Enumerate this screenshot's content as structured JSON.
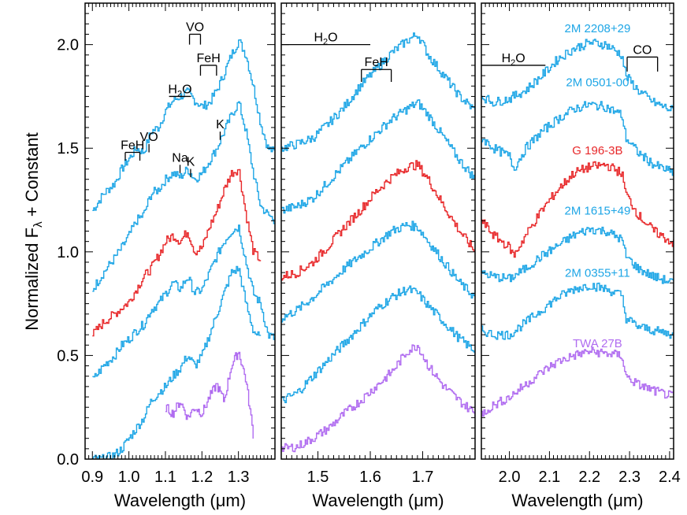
{
  "chart_data": {
    "type": "line",
    "ylabel_main": "Normalized F",
    "ylabel_sub": "λ",
    "ylabel_tail": " + Constant",
    "y_ticks": [
      "0.0",
      "0.5",
      "1.0",
      "1.5",
      "2.0"
    ],
    "ylim": [
      0.0,
      2.2
    ],
    "colors": {
      "field": "#1ea6e6",
      "target": "#e8282a",
      "young": "#b06cf0",
      "axis": "#000000"
    },
    "panels": [
      {
        "xlabel": "Wavelength (μm)",
        "xlim": [
          0.88,
          1.4
        ],
        "x_ticks": [
          "0.9",
          "1.0",
          "1.1",
          "1.2",
          "1.3"
        ],
        "spectra": [
          {
            "name": "2M 2208+29",
            "role": "field",
            "x": [
              0.9,
              0.93,
              0.96,
              0.98,
              1.0,
              1.02,
              1.04,
              1.06,
              1.08,
              1.1,
              1.12,
              1.14,
              1.16,
              1.18,
              1.2,
              1.22,
              1.24,
              1.26,
              1.28,
              1.3,
              1.32,
              1.34,
              1.36,
              1.38,
              1.4
            ],
            "y": [
              1.2,
              1.28,
              1.33,
              1.4,
              1.45,
              1.5,
              1.48,
              1.58,
              1.6,
              1.68,
              1.73,
              1.75,
              1.77,
              1.73,
              1.7,
              1.72,
              1.78,
              1.86,
              1.95,
              2.02,
              1.95,
              1.8,
              1.62,
              1.5,
              1.48
            ]
          },
          {
            "name": "2M 0501-00",
            "role": "field",
            "x": [
              0.9,
              0.93,
              0.96,
              0.98,
              1.0,
              1.02,
              1.04,
              1.06,
              1.08,
              1.1,
              1.12,
              1.14,
              1.16,
              1.18,
              1.2,
              1.22,
              1.24,
              1.26,
              1.28,
              1.3,
              1.32,
              1.34,
              1.36,
              1.38,
              1.4
            ],
            "y": [
              0.82,
              0.9,
              0.97,
              1.02,
              1.08,
              1.15,
              1.18,
              1.28,
              1.3,
              1.35,
              1.38,
              1.36,
              1.4,
              1.35,
              1.38,
              1.44,
              1.5,
              1.58,
              1.66,
              1.72,
              1.58,
              1.38,
              1.22,
              1.18,
              1.15
            ]
          },
          {
            "name": "G 196-3B",
            "role": "target",
            "x": [
              0.9,
              0.93,
              0.96,
              0.98,
              1.0,
              1.02,
              1.04,
              1.06,
              1.08,
              1.1,
              1.12,
              1.14,
              1.16,
              1.18,
              1.2,
              1.22,
              1.24,
              1.26,
              1.28,
              1.3,
              1.32,
              1.34,
              1.36
            ],
            "y": [
              0.6,
              0.66,
              0.7,
              0.73,
              0.76,
              0.82,
              0.88,
              0.92,
              0.98,
              1.05,
              1.08,
              1.05,
              1.1,
              1.0,
              1.02,
              1.12,
              1.2,
              1.3,
              1.38,
              1.4,
              1.18,
              1.0,
              0.96
            ]
          },
          {
            "name": "2M 1615+49",
            "role": "field",
            "x": [
              0.9,
              0.93,
              0.96,
              0.98,
              1.0,
              1.02,
              1.04,
              1.06,
              1.08,
              1.1,
              1.12,
              1.14,
              1.16,
              1.18,
              1.2,
              1.22,
              1.24,
              1.26,
              1.28,
              1.3,
              1.32,
              1.34,
              1.36,
              1.38,
              1.4
            ],
            "y": [
              0.38,
              0.45,
              0.5,
              0.55,
              0.58,
              0.62,
              0.65,
              0.72,
              0.75,
              0.8,
              0.85,
              0.82,
              0.88,
              0.8,
              0.82,
              0.9,
              0.98,
              1.05,
              1.1,
              1.12,
              0.95,
              0.8,
              0.75,
              0.6,
              0.58
            ]
          },
          {
            "name": "2M 0355+11",
            "role": "field",
            "x": [
              0.9,
              0.93,
              0.96,
              0.98,
              1.0,
              1.02,
              1.04,
              1.06,
              1.08,
              1.1,
              1.12,
              1.14,
              1.16,
              1.18,
              1.2,
              1.22,
              1.24,
              1.26,
              1.28,
              1.3,
              1.32,
              1.34,
              1.36
            ],
            "y": [
              0.0,
              0.0,
              0.02,
              0.05,
              0.1,
              0.15,
              0.2,
              0.28,
              0.32,
              0.35,
              0.4,
              0.44,
              0.5,
              0.45,
              0.5,
              0.6,
              0.7,
              0.8,
              0.9,
              0.92,
              0.75,
              0.62,
              0.58
            ]
          },
          {
            "name": "TWA 27B",
            "role": "young",
            "x": [
              1.1,
              1.12,
              1.14,
              1.16,
              1.18,
              1.2,
              1.22,
              1.24,
              1.26,
              1.28,
              1.3,
              1.32,
              1.34
            ],
            "y": [
              0.25,
              0.22,
              0.28,
              0.2,
              0.25,
              0.22,
              0.3,
              0.36,
              0.28,
              0.45,
              0.52,
              0.38,
              0.12
            ]
          }
        ],
        "annotations": [
          {
            "text": "VO",
            "x0": 1.166,
            "x1": 1.196,
            "y": 2.05,
            "tick": 0.05
          },
          {
            "text": "FeH",
            "x0": 1.196,
            "x1": 1.24,
            "y": 1.9,
            "tick": 0.05
          },
          {
            "text": "H",
            "sub": "2",
            "tail": "O",
            "x0": 1.11,
            "x1": 1.17,
            "y": 1.75,
            "tick": 0.0
          },
          {
            "text": "FeH",
            "x0": 0.99,
            "x1": 1.03,
            "y": 1.48,
            "tick": 0.04
          },
          {
            "text": "VO",
            "x0": 1.055,
            "x1": 1.055,
            "y": 1.52,
            "tick": 0.04
          },
          {
            "text": "Na",
            "x0": 1.14,
            "x1": 1.14,
            "y": 1.42,
            "tick": 0.04
          },
          {
            "text": "K",
            "x0": 1.169,
            "x1": 1.169,
            "y": 1.4,
            "tick": 0.04
          },
          {
            "text": "K",
            "x0": 1.25,
            "x1": 1.25,
            "y": 1.58,
            "tick": 0.04
          }
        ]
      },
      {
        "xlabel": "Wavelength (μm)",
        "xlim": [
          1.43,
          1.8
        ],
        "x_ticks": [
          "1.5",
          "1.6",
          "1.7"
        ],
        "spectra": [
          {
            "name": "2M 2208+29",
            "role": "field",
            "x": [
              1.43,
              1.46,
              1.49,
              1.52,
              1.55,
              1.58,
              1.61,
              1.64,
              1.67,
              1.69,
              1.71,
              1.74,
              1.77,
              1.8
            ],
            "y": [
              1.5,
              1.52,
              1.55,
              1.62,
              1.7,
              1.8,
              1.88,
              1.96,
              2.02,
              2.05,
              1.95,
              1.85,
              1.75,
              1.68
            ]
          },
          {
            "name": "2M 0501-00",
            "role": "field",
            "x": [
              1.43,
              1.46,
              1.49,
              1.52,
              1.55,
              1.58,
              1.61,
              1.64,
              1.67,
              1.69,
              1.71,
              1.74,
              1.77,
              1.8
            ],
            "y": [
              1.2,
              1.22,
              1.26,
              1.34,
              1.42,
              1.5,
              1.57,
              1.64,
              1.69,
              1.72,
              1.66,
              1.55,
              1.44,
              1.35
            ]
          },
          {
            "name": "G 196-3B",
            "role": "target",
            "x": [
              1.43,
              1.46,
              1.49,
              1.52,
              1.55,
              1.58,
              1.61,
              1.64,
              1.67,
              1.69,
              1.71,
              1.74,
              1.77,
              1.8
            ],
            "y": [
              0.88,
              0.9,
              0.95,
              1.03,
              1.12,
              1.2,
              1.29,
              1.36,
              1.41,
              1.42,
              1.35,
              1.22,
              1.1,
              1.0
            ]
          },
          {
            "name": "2M 1615+49",
            "role": "field",
            "x": [
              1.43,
              1.46,
              1.49,
              1.52,
              1.55,
              1.58,
              1.61,
              1.64,
              1.67,
              1.69,
              1.71,
              1.74,
              1.77,
              1.8
            ],
            "y": [
              0.68,
              0.72,
              0.78,
              0.85,
              0.92,
              0.98,
              1.04,
              1.1,
              1.13,
              1.12,
              1.05,
              0.95,
              0.85,
              0.78
            ]
          },
          {
            "name": "2M 0355+11",
            "role": "field",
            "x": [
              1.43,
              1.46,
              1.49,
              1.52,
              1.55,
              1.58,
              1.61,
              1.64,
              1.67,
              1.69,
              1.71,
              1.74,
              1.77,
              1.8
            ],
            "y": [
              0.28,
              0.32,
              0.4,
              0.48,
              0.56,
              0.64,
              0.72,
              0.78,
              0.82,
              0.8,
              0.74,
              0.66,
              0.58,
              0.52
            ]
          },
          {
            "name": "TWA 27B",
            "role": "young",
            "x": [
              1.43,
              1.46,
              1.49,
              1.52,
              1.55,
              1.58,
              1.61,
              1.64,
              1.67,
              1.69,
              1.71,
              1.74,
              1.77,
              1.8
            ],
            "y": [
              0.05,
              0.06,
              0.1,
              0.15,
              0.22,
              0.28,
              0.35,
              0.42,
              0.52,
              0.55,
              0.45,
              0.35,
              0.28,
              0.22
            ]
          }
        ],
        "annotations": [
          {
            "text": "H",
            "sub": "2",
            "tail": "O",
            "x0": 1.43,
            "x1": 1.6,
            "y": 2.0,
            "tick": 0.0
          },
          {
            "text": "FeH",
            "x0": 1.583,
            "x1": 1.64,
            "y": 1.88,
            "tick": 0.06
          }
        ]
      },
      {
        "xlabel": "Wavelength (μm)",
        "xlim": [
          1.93,
          2.41
        ],
        "x_ticks": [
          "2.0",
          "2.1",
          "2.2",
          "2.3",
          "2.4"
        ],
        "spectra": [
          {
            "name": "2M 2208+29",
            "role": "field",
            "x": [
              1.93,
              1.96,
              2.0,
              2.04,
              2.08,
              2.12,
              2.16,
              2.2,
              2.24,
              2.28,
              2.29,
              2.32,
              2.36,
              2.41
            ],
            "y": [
              1.75,
              1.72,
              1.74,
              1.78,
              1.85,
              1.93,
              1.98,
              2.01,
              2.0,
              1.95,
              1.85,
              1.78,
              1.72,
              1.68
            ]
          },
          {
            "name": "2M 0501-00",
            "role": "field",
            "x": [
              1.93,
              1.96,
              2.0,
              2.01,
              2.04,
              2.08,
              2.12,
              2.16,
              2.2,
              2.24,
              2.28,
              2.29,
              2.32,
              2.36,
              2.41
            ],
            "y": [
              1.55,
              1.5,
              1.46,
              1.4,
              1.5,
              1.58,
              1.64,
              1.69,
              1.71,
              1.7,
              1.66,
              1.55,
              1.48,
              1.42,
              1.38
            ]
          },
          {
            "name": "G 196-3B",
            "role": "target",
            "x": [
              1.93,
              1.96,
              2.0,
              2.01,
              2.04,
              2.08,
              2.12,
              2.16,
              2.2,
              2.24,
              2.28,
              2.29,
              2.32,
              2.36,
              2.41
            ],
            "y": [
              1.15,
              1.08,
              1.02,
              0.98,
              1.08,
              1.2,
              1.3,
              1.38,
              1.41,
              1.42,
              1.38,
              1.28,
              1.18,
              1.1,
              1.04
            ]
          },
          {
            "name": "2M 1615+49",
            "role": "field",
            "x": [
              1.93,
              1.96,
              2.0,
              2.04,
              2.08,
              2.12,
              2.16,
              2.2,
              2.24,
              2.28,
              2.29,
              2.32,
              2.36,
              2.41
            ],
            "y": [
              0.9,
              0.88,
              0.87,
              0.92,
              0.98,
              1.03,
              1.08,
              1.11,
              1.1,
              1.06,
              0.98,
              0.92,
              0.88,
              0.85
            ]
          },
          {
            "name": "2M 0355+11",
            "role": "field",
            "x": [
              1.93,
              1.96,
              2.0,
              2.04,
              2.08,
              2.12,
              2.16,
              2.2,
              2.24,
              2.28,
              2.29,
              2.32,
              2.36,
              2.41
            ],
            "y": [
              0.62,
              0.6,
              0.6,
              0.66,
              0.72,
              0.78,
              0.82,
              0.84,
              0.82,
              0.79,
              0.68,
              0.64,
              0.62,
              0.6
            ]
          },
          {
            "name": "TWA 27B",
            "role": "young",
            "x": [
              1.93,
              1.96,
              2.0,
              2.04,
              2.08,
              2.12,
              2.16,
              2.2,
              2.24,
              2.28,
              2.29,
              2.32,
              2.36,
              2.41
            ],
            "y": [
              0.22,
              0.26,
              0.3,
              0.36,
              0.42,
              0.47,
              0.5,
              0.52,
              0.51,
              0.5,
              0.4,
              0.36,
              0.33,
              0.3
            ]
          }
        ],
        "annotations": [
          {
            "text": "H",
            "sub": "2",
            "tail": "O",
            "x0": 1.93,
            "x1": 2.09,
            "y": 1.9,
            "tick": 0.0
          },
          {
            "text": "CO",
            "x0": 2.294,
            "x1": 2.37,
            "y": 1.94,
            "tick": 0.07
          }
        ],
        "labels": [
          {
            "text": "2M 2208+29",
            "role": "field",
            "x": 2.22,
            "y": 2.06
          },
          {
            "text": "2M 0501-00",
            "role": "field",
            "x": 2.22,
            "y": 1.8
          },
          {
            "text": "G 196-3B",
            "role": "target",
            "x": 2.22,
            "y": 1.47
          },
          {
            "text": "2M 1615+49",
            "role": "field",
            "x": 2.22,
            "y": 1.18
          },
          {
            "text": "2M 0355+11",
            "role": "field",
            "x": 2.22,
            "y": 0.88
          },
          {
            "text": "TWA 27B",
            "role": "young",
            "x": 2.22,
            "y": 0.54
          }
        ]
      }
    ]
  }
}
